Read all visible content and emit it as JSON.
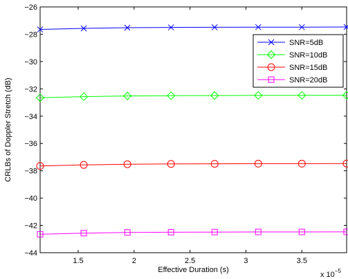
{
  "chart_data": {
    "type": "line",
    "xlabel": "Effective Duration (s)",
    "ylabel": "CRLBs of Doppler Stretch (dB)",
    "x_exponent_label": "x 10",
    "x_exponent_power": "−5",
    "xlim": [
      1.16,
      3.9
    ],
    "ylim": [
      -44,
      -26
    ],
    "x_ticks": [
      1.5,
      2,
      2.5,
      3,
      3.5
    ],
    "x_tick_labels": [
      "1.5",
      "2",
      "2.5",
      "3",
      "3.5"
    ],
    "y_ticks": [
      -44,
      -42,
      -40,
      -38,
      -36,
      -34,
      -32,
      -30,
      -28,
      -26
    ],
    "y_tick_labels": [
      "−44",
      "−42",
      "−40",
      "−38",
      "−36",
      "−34",
      "−32",
      "−30",
      "−28",
      "−26"
    ],
    "grid": false,
    "legend_position": "top-right",
    "x": [
      1.16,
      1.55,
      1.94,
      2.33,
      2.72,
      3.11,
      3.5,
      3.9
    ],
    "series": [
      {
        "name": "SNR=5dB",
        "color": "#0000ff",
        "marker": "x",
        "values": [
          -27.65,
          -27.57,
          -27.52,
          -27.5,
          -27.49,
          -27.48,
          -27.48,
          -27.47
        ]
      },
      {
        "name": "SNR=10dB",
        "color": "#00ff00",
        "marker": "diamond",
        "values": [
          -32.65,
          -32.57,
          -32.52,
          -32.5,
          -32.49,
          -32.48,
          -32.48,
          -32.47
        ]
      },
      {
        "name": "SNR=15dB",
        "color": "#ff0000",
        "marker": "circle",
        "values": [
          -37.65,
          -37.57,
          -37.52,
          -37.5,
          -37.49,
          -37.48,
          -37.48,
          -37.47
        ]
      },
      {
        "name": "SNR=20dB",
        "color": "#ff00ff",
        "marker": "square",
        "values": [
          -42.65,
          -42.57,
          -42.52,
          -42.5,
          -42.49,
          -42.48,
          -42.48,
          -42.47
        ]
      }
    ]
  }
}
